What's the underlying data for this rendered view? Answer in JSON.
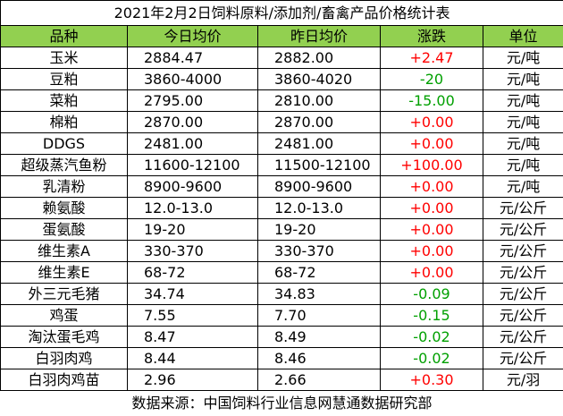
{
  "title": "2021年2月2日饲料原料/添加剂/畜禽产品价格统计表",
  "table": {
    "header": [
      "品种",
      "今日均价",
      "昨日均价",
      "涨跌",
      "单位"
    ],
    "rows": [
      [
        "玉米",
        "2884.47",
        "2882.00",
        "+2.47",
        "元/吨"
      ],
      [
        "豆粕",
        "3860-4000",
        "3860-4020",
        "-20",
        "元/吨"
      ],
      [
        "菜粕",
        "2795.00",
        "2810.00",
        "-15.00",
        "元/吨"
      ],
      [
        "棉粕",
        "2870.00",
        "2870.00",
        "+0.00",
        "元/吨"
      ],
      [
        "DDGS",
        "2481.00",
        "2481.00",
        "+0.00",
        "元/吨"
      ],
      [
        "超级蒸汽鱼粉",
        "11600-12100",
        "11500-12100",
        "+100.00",
        "元/吨"
      ],
      [
        "乳清粉",
        "8900-9600",
        "8900-9600",
        "+0.00",
        "元/吨"
      ],
      [
        "赖氨酸",
        "12.0-13.0",
        "12.0-13.0",
        "+0.00",
        "元/公斤"
      ],
      [
        "蛋氨酸",
        "19-20",
        "19-20",
        "+0.00",
        "元/公斤"
      ],
      [
        "维生素A",
        "330-370",
        "330-370",
        "+0.00",
        "元/公斤"
      ],
      [
        "维生素E",
        "68-72",
        "68-72",
        "+0.00",
        "元/公斤"
      ],
      [
        "外三元毛猪",
        "34.74",
        "34.83",
        "-0.09",
        "元/公斤"
      ],
      [
        "鸡蛋",
        "7.55",
        "7.70",
        "-0.15",
        "元/公斤"
      ],
      [
        "淘汰蛋毛鸡",
        "8.47",
        "8.49",
        "-0.02",
        "元/公斤"
      ],
      [
        "白羽肉鸡",
        "8.44",
        "8.46",
        "-0.02",
        "元/公斤"
      ],
      [
        "白羽肉鸡苗",
        "2.96",
        "2.66",
        "+0.30",
        "元/羽"
      ]
    ]
  },
  "footer": "数据来源：中国饲料行业信息网慧通数据研究部"
}
